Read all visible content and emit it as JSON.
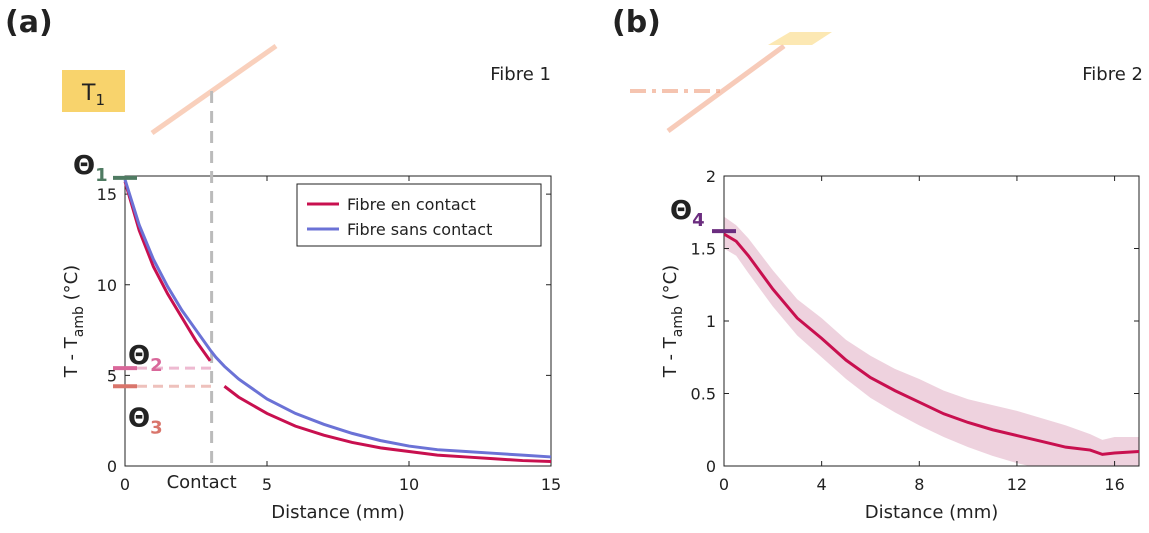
{
  "chart_data": [
    {
      "type": "line",
      "panel": "(a)",
      "fibre_label": "Fibre 1",
      "source_label": {
        "text": "T",
        "sub": "1"
      },
      "xlabel": "Distance (mm)",
      "ylabel": {
        "text": "T - T",
        "sub": "amb",
        "unit": " (°C)"
      },
      "xlim": [
        0,
        15
      ],
      "ylim": [
        0,
        16
      ],
      "xticks": [
        0,
        5,
        10,
        15
      ],
      "yticks": [
        0,
        5,
        10,
        15
      ],
      "legend": "upper right",
      "x": [
        0,
        0.5,
        1,
        1.5,
        2,
        2.5,
        3,
        3.2,
        3.5,
        4,
        5,
        6,
        7,
        8,
        9,
        10,
        11,
        12,
        13,
        14,
        15
      ],
      "series": [
        {
          "name": "Fibre en contact",
          "color": "#c8104f",
          "values": [
            15.7,
            13.0,
            11.0,
            9.5,
            8.2,
            6.9,
            5.8,
            null,
            4.4,
            3.8,
            2.9,
            2.2,
            1.7,
            1.3,
            1.0,
            0.8,
            0.6,
            0.5,
            0.4,
            0.3,
            0.25
          ]
        },
        {
          "name": "Fibre sans contact",
          "color": "#6b72d6",
          "values": [
            15.8,
            13.3,
            11.4,
            9.9,
            8.6,
            7.5,
            6.4,
            6.0,
            5.5,
            4.8,
            3.7,
            2.9,
            2.3,
            1.8,
            1.4,
            1.1,
            0.9,
            0.8,
            0.7,
            0.6,
            0.5
          ]
        }
      ],
      "contact": {
        "label": "Contact",
        "x": 3.05
      },
      "theta_markers": [
        {
          "label": "Θ",
          "sub": "1",
          "value": 15.9,
          "color": "#4f7b62"
        },
        {
          "label": "Θ",
          "sub": "2",
          "value": 5.4,
          "color": "#d9679a",
          "guide_to_contact": true
        },
        {
          "label": "Θ",
          "sub": "3",
          "value": 4.4,
          "color": "#d9756b",
          "guide_to_contact": true
        }
      ]
    },
    {
      "type": "line",
      "panel": "(b)",
      "fibre_label": "Fibre 2",
      "xlabel": "Distance (mm)",
      "ylabel": {
        "text": "T - T",
        "sub": "amb",
        "unit": " (°C)"
      },
      "xlim": [
        0,
        17
      ],
      "ylim": [
        0,
        2
      ],
      "xticks": [
        0,
        4,
        8,
        12,
        16
      ],
      "yticks": [
        0,
        0.5,
        1,
        1.5,
        2
      ],
      "x": [
        0,
        0.5,
        1,
        2,
        3,
        4,
        5,
        6,
        7,
        8,
        9,
        10,
        11,
        12,
        13,
        14,
        15,
        15.5,
        16,
        17
      ],
      "series": [
        {
          "color": "#c8104f",
          "band_color": "#e2b4c8",
          "values": [
            1.6,
            1.55,
            1.45,
            1.22,
            1.02,
            0.88,
            0.73,
            0.61,
            0.52,
            0.44,
            0.36,
            0.3,
            0.25,
            0.21,
            0.17,
            0.13,
            0.11,
            0.08,
            0.09,
            0.1
          ],
          "band_lower": [
            1.5,
            1.45,
            1.33,
            1.1,
            0.9,
            0.75,
            0.6,
            0.47,
            0.37,
            0.28,
            0.2,
            0.13,
            0.07,
            0.02,
            -0.02,
            -0.05,
            -0.05,
            -0.06,
            -0.05,
            -0.04
          ],
          "band_upper": [
            1.72,
            1.66,
            1.57,
            1.35,
            1.15,
            1.02,
            0.87,
            0.76,
            0.67,
            0.6,
            0.52,
            0.46,
            0.42,
            0.38,
            0.33,
            0.28,
            0.22,
            0.18,
            0.2,
            0.2
          ]
        }
      ],
      "theta_markers": [
        {
          "label": "Θ",
          "sub": "4",
          "value": 1.62,
          "color": "#6b2d7f"
        }
      ]
    }
  ]
}
